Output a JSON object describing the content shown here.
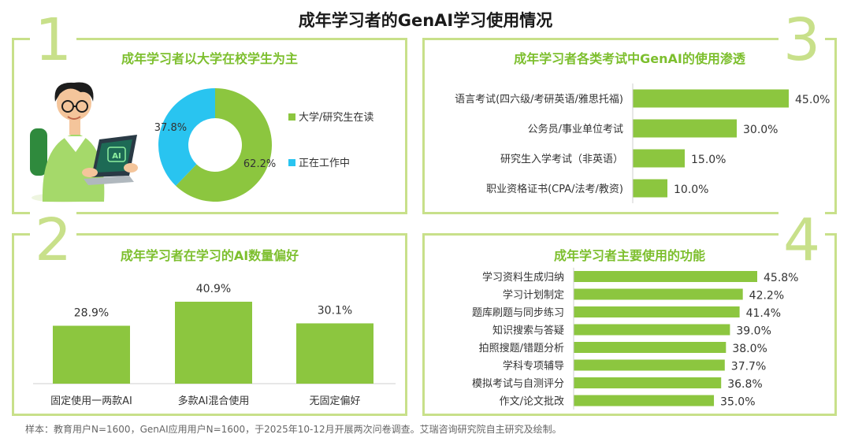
{
  "title": "成年学习者的GenAI学习使用情况",
  "footer": "样本：教育用户N=1600，GenAI应用用户N=1600，于2025年10-12月开展两次问卷调查。艾瑞咨询研究院自主研究及绘制。",
  "panels": {
    "p1": {
      "number": "1",
      "title": "成年学习者以大学在校学生为主"
    },
    "p2": {
      "number": "2",
      "title": "成年学习者在学习的AI数量偏好"
    },
    "p3": {
      "number": "3",
      "title": "成年学习者各类考试中GenAI的使用渗透"
    },
    "p4": {
      "number": "4",
      "title": "成年学习者主要使用的功能"
    }
  },
  "illustration": {
    "screen_text": "AI"
  },
  "colors": {
    "green": "#8cc63f",
    "blue": "#29c4f0",
    "frame": "#c8e08a",
    "title_green": "#7dbf2e"
  },
  "chart_data": [
    {
      "type": "pie",
      "title": "成年学习者以大学在校学生为主",
      "donut": true,
      "slices": [
        {
          "label": "大学/研究生在读",
          "value": 62.2,
          "value_label": "62.2%",
          "color": "#8cc63f"
        },
        {
          "label": "正在工作中",
          "value": 37.8,
          "value_label": "37.8%",
          "color": "#29c4f0"
        }
      ],
      "legend": "right"
    },
    {
      "type": "bar",
      "orientation": "vertical",
      "title": "成年学习者在学习的AI数量偏好",
      "categories": [
        "固定使用一两款AI",
        "多款AI混合使用",
        "无固定偏好"
      ],
      "values": [
        28.9,
        40.9,
        30.1
      ],
      "value_labels": [
        "28.9%",
        "40.9%",
        "30.1%"
      ],
      "color": "#8cc63f"
    },
    {
      "type": "bar",
      "orientation": "horizontal",
      "title": "成年学习者各类考试中GenAI的使用渗透",
      "categories": [
        "语言考试(四六级/考研英语/雅思托福)",
        "公务员/事业单位考试",
        "研究生入学考试（非英语）",
        "职业资格证书(CPA/法考/教资)"
      ],
      "values": [
        45.0,
        30.0,
        15.0,
        10.0
      ],
      "value_labels": [
        "45.0%",
        "30.0%",
        "15.0%",
        "10.0%"
      ],
      "color": "#8cc63f"
    },
    {
      "type": "bar",
      "orientation": "horizontal",
      "title": "成年学习者主要使用的功能",
      "categories": [
        "学习资料生成归纳",
        "学习计划制定",
        "题库刷题与同步练习",
        "知识搜索与答疑",
        "拍照搜题/错题分析",
        "学科专项辅导",
        "模拟考试与自测评分",
        "作文/论文批改"
      ],
      "values": [
        45.8,
        42.2,
        41.4,
        39.0,
        38.0,
        37.7,
        36.8,
        35.0
      ],
      "value_labels": [
        "45.8%",
        "42.2%",
        "41.4%",
        "39.0%",
        "38.0%",
        "37.7%",
        "36.8%",
        "35.0%"
      ],
      "color": "#8cc63f"
    }
  ]
}
